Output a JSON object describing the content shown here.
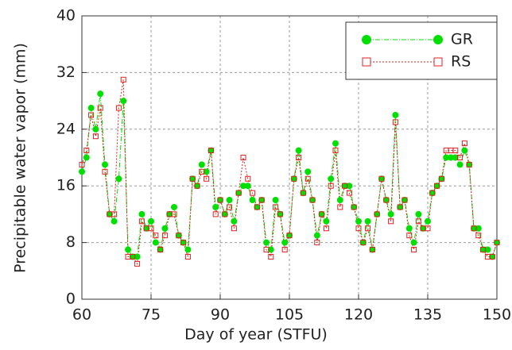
{
  "chart_data": {
    "type": "line",
    "x_label": "Day of year (STFU)",
    "y_label": "Precipitable water vapor (mm)",
    "x": [
      60,
      61,
      62,
      63,
      64,
      65,
      66,
      67,
      68,
      69,
      70,
      71,
      72,
      73,
      74,
      75,
      76,
      77,
      78,
      79,
      80,
      81,
      82,
      83,
      84,
      85,
      86,
      87,
      88,
      89,
      90,
      91,
      92,
      93,
      94,
      95,
      96,
      97,
      98,
      99,
      100,
      101,
      102,
      103,
      104,
      105,
      106,
      107,
      108,
      109,
      110,
      111,
      112,
      113,
      114,
      115,
      116,
      117,
      118,
      119,
      120,
      121,
      122,
      123,
      124,
      125,
      126,
      127,
      128,
      129,
      130,
      131,
      132,
      133,
      134,
      135,
      136,
      137,
      138,
      139,
      140,
      141,
      142,
      143,
      144,
      145,
      146,
      147,
      148,
      149,
      150
    ],
    "series": [
      {
        "name": "GR",
        "color": "#00e000",
        "values": [
          18,
          20,
          27,
          24,
          29,
          19,
          12,
          11,
          17,
          28,
          7,
          6,
          6,
          12,
          10,
          11,
          8,
          7,
          10,
          12,
          13,
          9,
          8,
          7,
          17,
          16,
          19,
          18,
          21,
          13,
          14,
          12,
          14,
          11,
          15,
          16,
          16,
          14,
          13,
          14,
          8,
          7,
          14,
          12,
          8,
          9,
          17,
          21,
          15,
          18,
          14,
          9,
          12,
          11,
          17,
          22,
          14,
          16,
          16,
          13,
          11,
          8,
          11,
          7,
          12,
          17,
          14,
          12,
          26,
          13,
          14,
          10,
          8,
          12,
          10,
          11,
          15,
          16,
          17,
          20,
          20,
          20,
          19,
          21,
          19,
          10,
          10,
          7,
          7,
          6,
          8
        ]
      },
      {
        "name": "RS",
        "color": "#e02020",
        "values": [
          19,
          21,
          26,
          23,
          27,
          18,
          12,
          12,
          27,
          31,
          6,
          6,
          5,
          11,
          10,
          10,
          9,
          7,
          9,
          12,
          12,
          9,
          8,
          6,
          17,
          16,
          18,
          17,
          21,
          12,
          14,
          12,
          13,
          10,
          15,
          20,
          17,
          15,
          13,
          14,
          7,
          6,
          13,
          12,
          7,
          9,
          17,
          20,
          15,
          17,
          14,
          8,
          12,
          10,
          16,
          21,
          13,
          16,
          15,
          13,
          10,
          8,
          10,
          7,
          12,
          17,
          14,
          11,
          25,
          13,
          14,
          9,
          7,
          11,
          10,
          10,
          15,
          16,
          17,
          21,
          21,
          21,
          20,
          22,
          19,
          10,
          9,
          7,
          6,
          6,
          8
        ]
      }
    ],
    "xlim": [
      60,
      150
    ],
    "ylim": [
      0,
      40
    ],
    "xticks": [
      60,
      75,
      90,
      105,
      120,
      135,
      150
    ],
    "yticks": [
      0,
      8,
      16,
      24,
      32,
      40
    ],
    "grid": true,
    "legend": "upper right"
  }
}
